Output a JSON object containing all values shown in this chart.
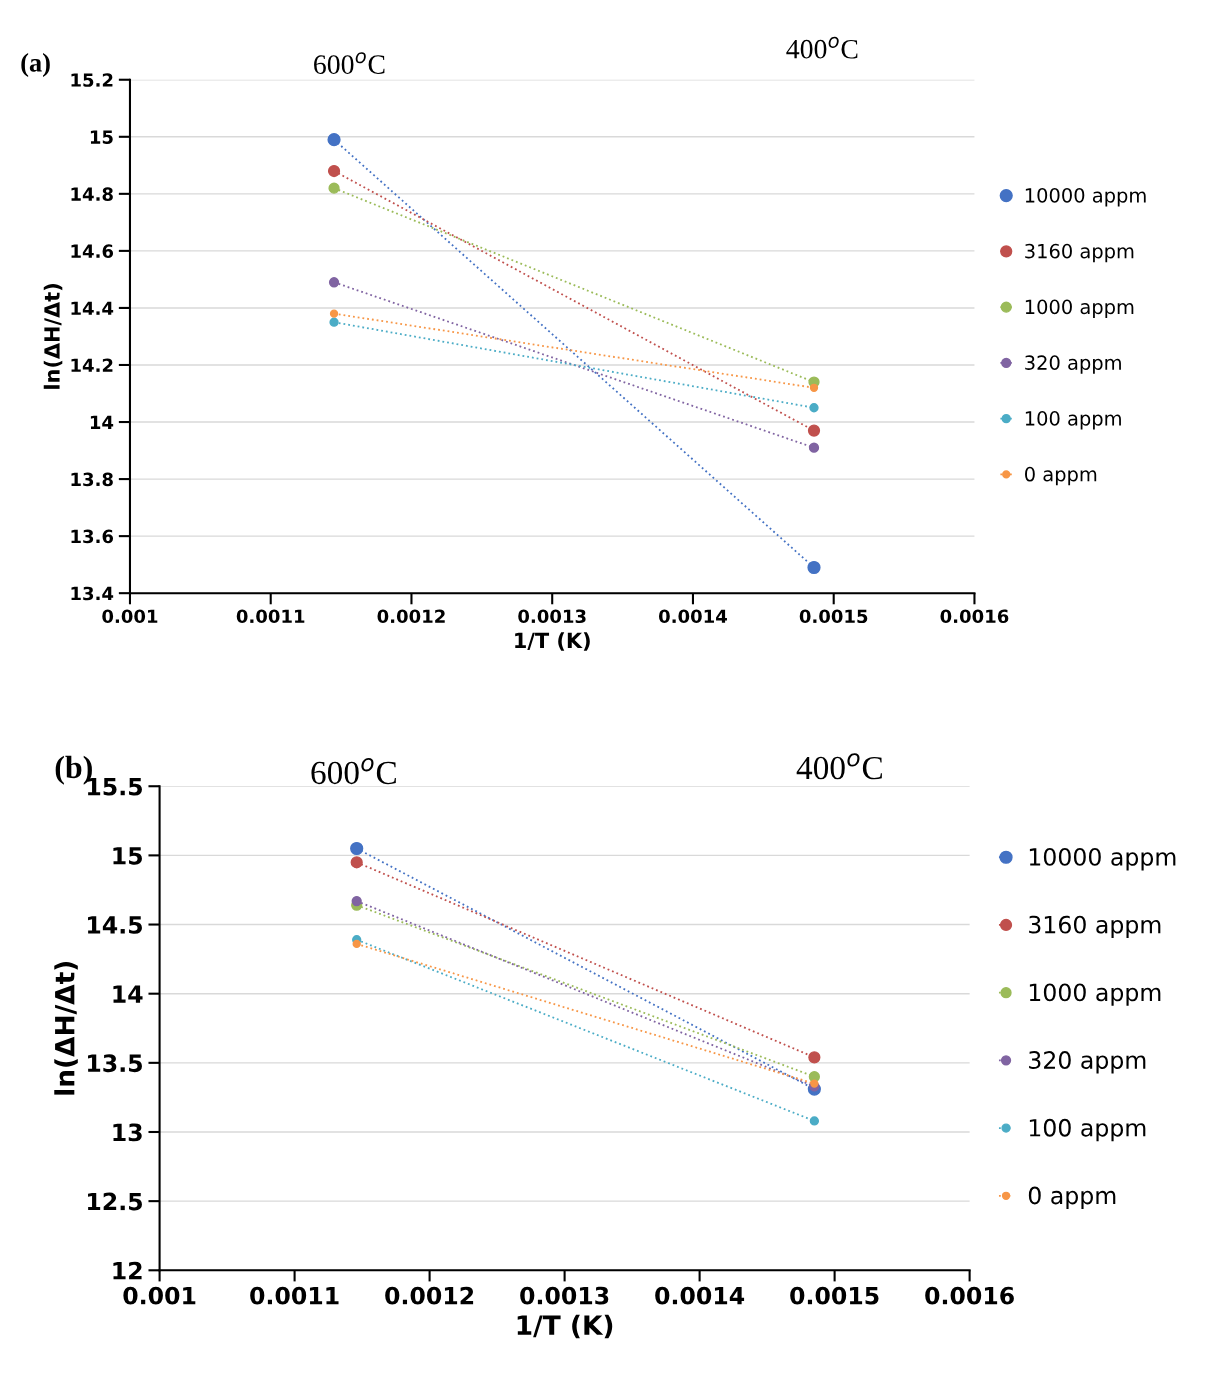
{
  "chart_data": [
    {
      "type": "line",
      "title": "(a)",
      "xlabel": "1/T (K)",
      "ylabel": "ln(ΔH/Δt)",
      "x": [
        0.001145,
        0.001486
      ],
      "series": [
        {
          "name": "10000 appm",
          "color": "#4472c4",
          "values": [
            14.99,
            13.49
          ]
        },
        {
          "name": "3160 appm",
          "color": "#c0504d",
          "values": [
            14.88,
            13.97
          ]
        },
        {
          "name": "1000 appm",
          "color": "#9bbb59",
          "values": [
            14.82,
            14.14
          ]
        },
        {
          "name": "320 appm",
          "color": "#8064a2",
          "values": [
            14.49,
            13.91
          ]
        },
        {
          "name": "100 appm",
          "color": "#4bacc6",
          "values": [
            14.35,
            14.05
          ]
        },
        {
          "name": "0 appm",
          "color": "#f79646",
          "values": [
            14.38,
            14.12
          ]
        }
      ],
      "xlim": [
        0.001,
        0.0016
      ],
      "xticks": [
        0.001,
        0.0011,
        0.0012,
        0.0013,
        0.0014,
        0.0015,
        0.0016
      ],
      "ylim": [
        13.4,
        15.2
      ],
      "yticks": [
        13.4,
        13.6,
        13.8,
        14,
        14.2,
        14.4,
        14.6,
        14.8,
        15,
        15.2
      ],
      "annotations": [
        "600$^{o}$C",
        "400$^{o}$C"
      ],
      "grid": "y",
      "legend": "right",
      "marker": "circle",
      "line_style": "dotted"
    },
    {
      "type": "line",
      "title": "(b)",
      "xlabel": "1/T (K)",
      "ylabel": "ln(ΔH/Δt)",
      "x": [
        0.001146,
        0.001485
      ],
      "series": [
        {
          "name": "10000 appm",
          "color": "#4472c4",
          "values": [
            15.05,
            13.31
          ]
        },
        {
          "name": "3160 appm",
          "color": "#c0504d",
          "values": [
            14.95,
            13.54
          ]
        },
        {
          "name": "1000 appm",
          "color": "#9bbb59",
          "values": [
            14.64,
            13.4
          ]
        },
        {
          "name": "320 appm",
          "color": "#8064a2",
          "values": [
            14.67,
            13.33
          ]
        },
        {
          "name": "100 appm",
          "color": "#4bacc6",
          "values": [
            14.39,
            13.08
          ]
        },
        {
          "name": "0 appm",
          "color": "#f79646",
          "values": [
            14.36,
            13.35
          ]
        }
      ],
      "xlim": [
        0.001,
        0.0016
      ],
      "xticks": [
        0.001,
        0.0011,
        0.0012,
        0.0013,
        0.0014,
        0.0015,
        0.0016
      ],
      "ylim": [
        12,
        15.5
      ],
      "yticks": [
        12,
        12.5,
        13,
        13.5,
        14,
        14.5,
        15,
        15.5
      ],
      "annotations": [
        "600$^{o}$C",
        "400$^{o}$C"
      ],
      "grid": "y",
      "legend": "right",
      "marker": "circle",
      "line_style": "dotted"
    }
  ]
}
